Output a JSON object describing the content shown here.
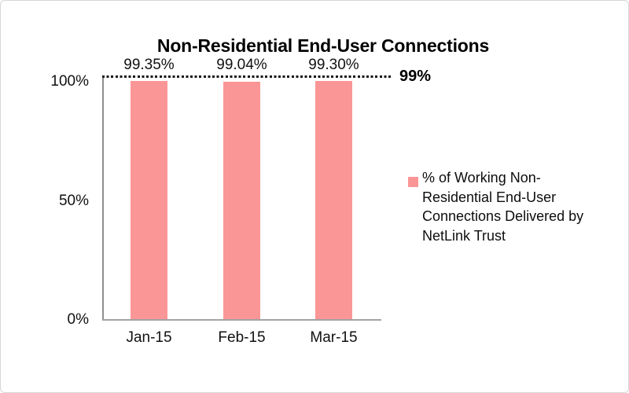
{
  "chart_data": {
    "type": "bar",
    "title": "Non-Residential End-User Connections",
    "categories": [
      "Jan-15",
      "Feb-15",
      "Mar-15"
    ],
    "series": [
      {
        "name": "% of Working Non-Residential End-User Connections Delivered by NetLink Trust",
        "values": [
          99.35,
          99.04,
          99.3
        ],
        "value_labels": [
          "99.35%",
          "99.04%",
          "99.30%"
        ],
        "color": "#fb9696"
      }
    ],
    "reference_line": {
      "value": 99,
      "label": "99%",
      "style": "dotted",
      "color": "#161616"
    },
    "y_axis": {
      "min": 0,
      "max": 100,
      "ticks": [
        "0%",
        "50%",
        "100%"
      ]
    },
    "xlabel": "",
    "ylabel": "",
    "grid": false,
    "legend_position": "right"
  },
  "colors": {
    "bar_fill": "#fb9696",
    "axis_line": "#8f8f8f",
    "text": "#000000",
    "frame_border": "#d4d7d9"
  }
}
